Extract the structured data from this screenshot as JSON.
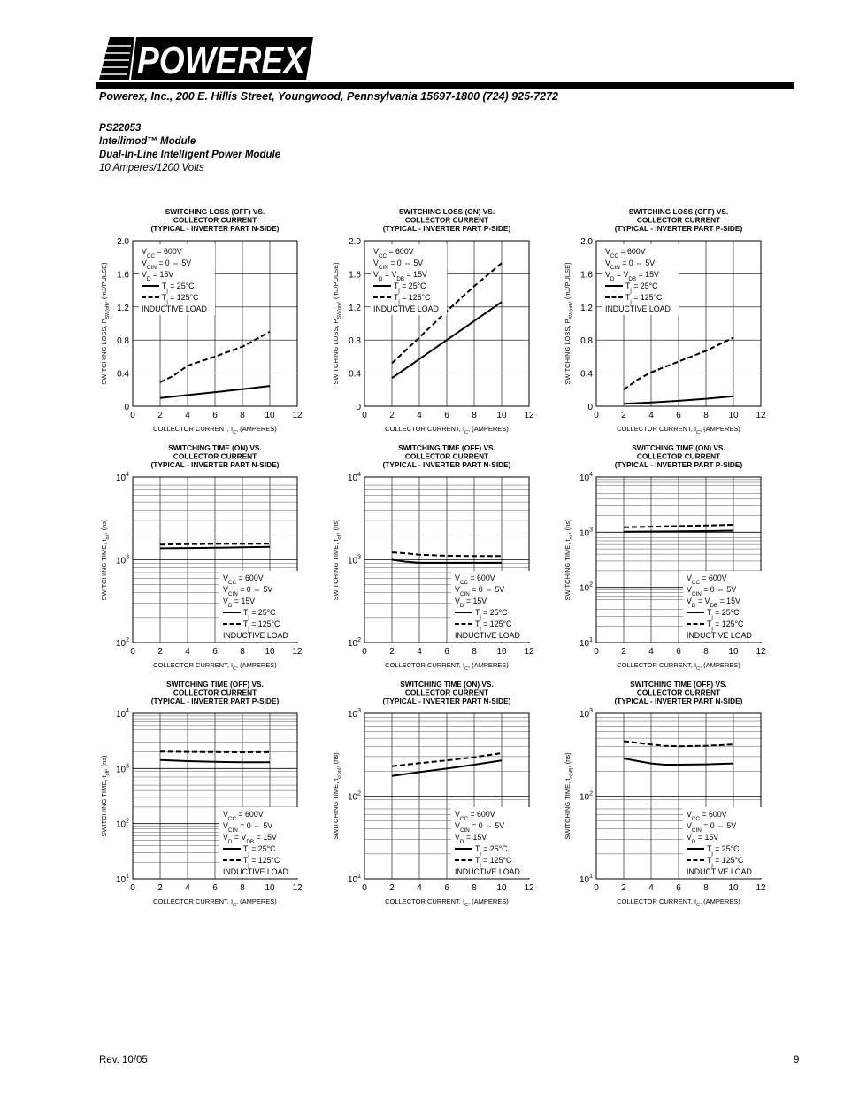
{
  "header": {
    "logo_text": "POWEREX",
    "address": "Powerex, Inc., 200 E. Hillis Street, Youngwood, Pennsylvania 15697-1800 (724) 925-7272"
  },
  "product": {
    "part": "PS22053",
    "line1": "Intellimod™ Module",
    "line2": "Dual-In-Line Intelligent Power Module",
    "rating": "10 Amperes/1200 Volts"
  },
  "footer": {
    "rev": "Rev. 10/05",
    "page": "9"
  },
  "chart_data": [
    {
      "type": "line",
      "title": [
        "SWITCHING LOSS (OFF) VS.",
        "COLLECTOR CURRENT",
        "(TYPICAL - INVERTER PART N-SIDE)"
      ],
      "xlabel": "COLLECTOR CURRENT, I_C, (AMPERES)",
      "ylabel": "SWITCHING LOSS, P_SW(off), (mJ/PULSE)",
      "xlim": [
        0,
        12
      ],
      "ylim": [
        0,
        2.0
      ],
      "yscale": "linear",
      "xticks": [
        0,
        2,
        4,
        6,
        8,
        10,
        12
      ],
      "yticks": [
        0,
        0.4,
        0.8,
        1.2,
        1.6,
        2.0
      ],
      "ytick_labels": [
        "0",
        "0.4",
        "0.8",
        "1.2",
        "1.6",
        "2.0"
      ],
      "legend_position": "top-left",
      "conditions": [
        "V_CC = 600V",
        "V_CIN = 0 ⇔ 5V",
        "V_D = 15V"
      ],
      "footnote": "INDUCTIVE LOAD",
      "series": [
        {
          "name": "T_j = 25°C",
          "style": "solid",
          "x": [
            2,
            4,
            6,
            8,
            10
          ],
          "y": [
            0.1,
            0.135,
            0.17,
            0.205,
            0.245
          ]
        },
        {
          "name": "T_j = 125°C",
          "style": "dashed",
          "x": [
            2,
            3,
            4,
            6,
            8,
            10
          ],
          "y": [
            0.29,
            0.37,
            0.49,
            0.6,
            0.72,
            0.9
          ]
        }
      ]
    },
    {
      "type": "line",
      "title": [
        "SWITCHING LOSS (ON) VS.",
        "COLLECTOR CURRENT",
        "(TYPICAL - INVERTER PART P-SIDE)"
      ],
      "xlabel": "COLLECTOR CURRENT, I_C, (AMPERES)",
      "ylabel": "SWITCHING LOSS, P_SW(on), (mJ/PULSE)",
      "xlim": [
        0,
        12
      ],
      "ylim": [
        0,
        2.0
      ],
      "yscale": "linear",
      "xticks": [
        0,
        2,
        4,
        6,
        8,
        10,
        12
      ],
      "yticks": [
        0,
        0.4,
        0.8,
        1.2,
        1.6,
        2.0
      ],
      "ytick_labels": [
        "0",
        "0.4",
        "0.8",
        "1.2",
        "1.6",
        "2.0"
      ],
      "legend_position": "top-left",
      "conditions": [
        "V_CC = 600V",
        "V_CIN = 0 ⇔ 5V",
        "V_D = V_DB = 15V"
      ],
      "footnote": "INDUCTIVE LOAD",
      "series": [
        {
          "name": "T_j = 25°C",
          "style": "solid",
          "x": [
            2,
            4,
            6,
            8,
            10
          ],
          "y": [
            0.34,
            0.57,
            0.8,
            1.03,
            1.26
          ]
        },
        {
          "name": "T_j = 125°C",
          "style": "dashed",
          "x": [
            2,
            4,
            6,
            8,
            10
          ],
          "y": [
            0.52,
            0.83,
            1.15,
            1.45,
            1.73
          ]
        }
      ]
    },
    {
      "type": "line",
      "title": [
        "SWITCHING LOSS (OFF) VS.",
        "COLLECTOR CURRENT",
        "(TYPICAL - INVERTER PART P-SIDE)"
      ],
      "xlabel": "COLLECTOR CURRENT, I_C, (AMPERES)",
      "ylabel": "SWITCHING LOSS, P_SW(off), (mJ/PULSE)",
      "xlim": [
        0,
        12
      ],
      "ylim": [
        0,
        2.0
      ],
      "yscale": "linear",
      "xticks": [
        0,
        2,
        4,
        6,
        8,
        10,
        12
      ],
      "yticks": [
        0,
        0.4,
        0.8,
        1.2,
        1.6,
        2.0
      ],
      "ytick_labels": [
        "0",
        "0.4",
        "0.8",
        "1.2",
        "1.6",
        "2.0"
      ],
      "legend_position": "top-left",
      "conditions": [
        "V_CC = 600V",
        "V_CIN = 0 ⇔ 5V",
        "V_D = V_DB = 15V"
      ],
      "footnote": "INDUCTIVE LOAD",
      "series": [
        {
          "name": "T_j = 25°C",
          "style": "solid",
          "x": [
            2,
            4,
            6,
            8,
            10
          ],
          "y": [
            0.03,
            0.045,
            0.065,
            0.09,
            0.12
          ]
        },
        {
          "name": "T_j = 125°C",
          "style": "dashed",
          "x": [
            2,
            3,
            4,
            6,
            8,
            10
          ],
          "y": [
            0.2,
            0.32,
            0.41,
            0.54,
            0.67,
            0.83
          ]
        }
      ]
    },
    {
      "type": "line",
      "title": [
        "SWITCHING TIME (ON) VS.",
        "COLLECTOR CURRENT",
        "(TYPICAL - INVERTER PART N-SIDE)"
      ],
      "xlabel": "COLLECTOR CURRENT, I_C, (AMPERES)",
      "ylabel": "SWITCHING TIME, t_on, (ns)",
      "xlim": [
        0,
        12
      ],
      "ylim": [
        100,
        10000
      ],
      "yscale": "log",
      "xticks": [
        0,
        2,
        4,
        6,
        8,
        10,
        12
      ],
      "yticks": [
        100,
        1000,
        10000
      ],
      "ytick_labels": [
        "10^2",
        "10^3",
        "10^4"
      ],
      "legend_position": "bottom-right",
      "conditions": [
        "V_CC = 600V",
        "V_CIN = 0 ⇔ 5V",
        "V_D = 15V"
      ],
      "footnote": "INDUCTIVE LOAD",
      "series": [
        {
          "name": "T_j = 25°C",
          "style": "solid",
          "x": [
            2,
            4,
            6,
            8,
            10
          ],
          "y": [
            1380,
            1390,
            1400,
            1420,
            1440
          ]
        },
        {
          "name": "T_j = 125°C",
          "style": "dashed",
          "x": [
            2,
            4,
            6,
            8,
            10
          ],
          "y": [
            1530,
            1550,
            1560,
            1560,
            1570
          ]
        }
      ]
    },
    {
      "type": "line",
      "title": [
        "SWITCHING TIME (OFF) VS.",
        "COLLECTOR CURRENT",
        "(TYPICAL - INVERTER PART N-SIDE)"
      ],
      "xlabel": "COLLECTOR CURRENT, I_C, (AMPERES)",
      "ylabel": "SWITCHING TIME, t_off, (ns)",
      "xlim": [
        0,
        12
      ],
      "ylim": [
        100,
        10000
      ],
      "yscale": "log",
      "xticks": [
        0,
        2,
        4,
        6,
        8,
        10,
        12
      ],
      "yticks": [
        100,
        1000,
        10000
      ],
      "ytick_labels": [
        "10^2",
        "10^3",
        "10^4"
      ],
      "legend_position": "bottom-right",
      "conditions": [
        "V_CC = 600V",
        "V_CIN = 0 ⇔ 5V",
        "V_D = 15V"
      ],
      "footnote": "INDUCTIVE LOAD",
      "series": [
        {
          "name": "T_j = 25°C",
          "style": "solid",
          "x": [
            2,
            3,
            4,
            6,
            8,
            10
          ],
          "y": [
            1000,
            950,
            920,
            920,
            920,
            920
          ]
        },
        {
          "name": "T_j = 125°C",
          "style": "dashed",
          "x": [
            2,
            3,
            4,
            6,
            8,
            10
          ],
          "y": [
            1230,
            1200,
            1150,
            1120,
            1110,
            1110
          ]
        }
      ]
    },
    {
      "type": "line",
      "title": [
        "SWITCHING TIME (ON) VS.",
        "COLLECTOR CURRENT",
        "(TYPICAL - INVERTER PART P-SIDE)"
      ],
      "xlabel": "COLLECTOR CURRENT, I_C, (AMPERES)",
      "ylabel": "SWITCHING TIME, t_on, (ns)",
      "xlim": [
        0,
        12
      ],
      "ylim": [
        10,
        10000
      ],
      "yscale": "log",
      "xticks": [
        0,
        2,
        4,
        6,
        8,
        10,
        12
      ],
      "yticks": [
        10,
        100,
        1000,
        10000
      ],
      "ytick_labels": [
        "10^1",
        "10^2",
        "10^3",
        "10^4"
      ],
      "legend_position": "bottom-right",
      "conditions": [
        "V_CC = 600V",
        "V_CIN = 0 ⇔ 5V",
        "V_D = V_DB = 15V"
      ],
      "footnote": "INDUCTIVE LOAD",
      "series": [
        {
          "name": "T_j = 25°C",
          "style": "solid",
          "x": [
            2,
            4,
            6,
            8,
            10
          ],
          "y": [
            1020,
            1030,
            1040,
            1050,
            1070
          ]
        },
        {
          "name": "T_j = 125°C",
          "style": "dashed",
          "x": [
            2,
            4,
            6,
            8,
            10
          ],
          "y": [
            1230,
            1260,
            1290,
            1320,
            1360
          ]
        }
      ]
    },
    {
      "type": "line",
      "title": [
        "SWITCHING TIME (OFF) VS.",
        "COLLECTOR CURRENT",
        "(TYPICAL - INVERTER PART P-SIDE)"
      ],
      "xlabel": "COLLECTOR CURRENT, I_C, (AMPERES)",
      "ylabel": "SWITCHING TIME, t_off, (ns)",
      "xlim": [
        0,
        12
      ],
      "ylim": [
        10,
        10000
      ],
      "yscale": "log",
      "xticks": [
        0,
        2,
        4,
        6,
        8,
        10,
        12
      ],
      "yticks": [
        10,
        100,
        1000,
        10000
      ],
      "ytick_labels": [
        "10^1",
        "10^2",
        "10^3",
        "10^4"
      ],
      "legend_position": "bottom-right",
      "conditions": [
        "V_CC = 600V",
        "V_CIN = 0 ⇔ 5V",
        "V_D = V_DB = 15V"
      ],
      "footnote": "INDUCTIVE LOAD",
      "series": [
        {
          "name": "T_j = 25°C",
          "style": "solid",
          "x": [
            2,
            4,
            6,
            8,
            10
          ],
          "y": [
            1420,
            1360,
            1320,
            1300,
            1300
          ]
        },
        {
          "name": "T_j = 125°C",
          "style": "dashed",
          "x": [
            2,
            4,
            6,
            8,
            10
          ],
          "y": [
            2030,
            2000,
            1980,
            1970,
            1980
          ]
        }
      ]
    },
    {
      "type": "line",
      "title": [
        "SWITCHING TIME (ON) VS.",
        "COLLECTOR CURRENT",
        "(TYPICAL - INVERTER PART N-SIDE)"
      ],
      "xlabel": "COLLECTOR CURRENT, I_C, (AMPERES)",
      "ylabel": "SWITCHING TIME, t_c(on), (ns)",
      "xlim": [
        0,
        12
      ],
      "ylim": [
        10,
        1000
      ],
      "yscale": "log",
      "xticks": [
        0,
        2,
        4,
        6,
        8,
        10,
        12
      ],
      "yticks": [
        10,
        100,
        1000
      ],
      "ytick_labels": [
        "10^1",
        "10^2",
        "10^3"
      ],
      "legend_position": "bottom-right",
      "conditions": [
        "V_CC = 600V",
        "V_CIN = 0 ⇔ 5V",
        "V_D = 15V"
      ],
      "footnote": "INDUCTIVE LOAD",
      "series": [
        {
          "name": "T_j = 25°C",
          "style": "solid",
          "x": [
            2,
            4,
            6,
            8,
            10
          ],
          "y": [
            175,
            195,
            215,
            240,
            270
          ]
        },
        {
          "name": "T_j = 125°C",
          "style": "dashed",
          "x": [
            2,
            4,
            6,
            8,
            10
          ],
          "y": [
            230,
            250,
            270,
            295,
            330
          ]
        }
      ]
    },
    {
      "type": "line",
      "title": [
        "SWITCHING TIME (OFF) VS.",
        "COLLECTOR CURRENT",
        "(TYPICAL - INVERTER PART N-SIDE)"
      ],
      "xlabel": "COLLECTOR CURRENT, I_C, (AMPERES)",
      "ylabel": "SWITCHING TIME, t_c(off), (ns)",
      "xlim": [
        0,
        12
      ],
      "ylim": [
        10,
        1000
      ],
      "yscale": "log",
      "xticks": [
        0,
        2,
        4,
        6,
        8,
        10,
        12
      ],
      "yticks": [
        10,
        100,
        1000
      ],
      "ytick_labels": [
        "10^1",
        "10^2",
        "10^3"
      ],
      "legend_position": "bottom-right",
      "conditions": [
        "V_CC = 600V",
        "V_CIN = 0 ⇔ 5V",
        "V_D = 15V"
      ],
      "footnote": "INDUCTIVE LOAD",
      "series": [
        {
          "name": "T_j = 25°C",
          "style": "solid",
          "x": [
            2,
            3,
            4,
            5,
            6,
            8,
            10
          ],
          "y": [
            285,
            265,
            248,
            240,
            240,
            242,
            248
          ]
        },
        {
          "name": "T_j = 125°C",
          "style": "dashed",
          "x": [
            2,
            3,
            4,
            5,
            6,
            8,
            10
          ],
          "y": [
            460,
            440,
            420,
            405,
            400,
            405,
            420
          ]
        }
      ]
    }
  ]
}
